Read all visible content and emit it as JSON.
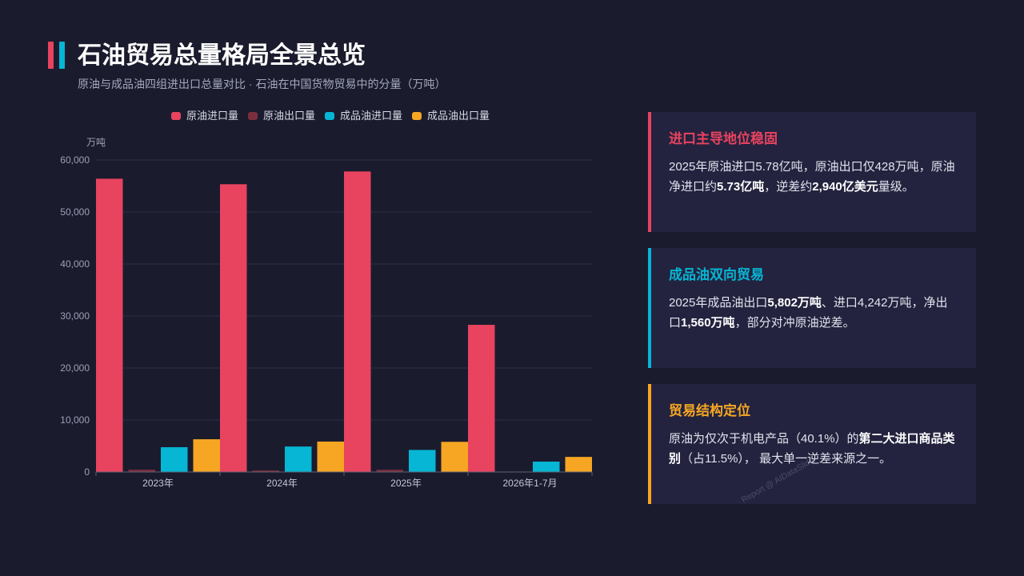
{
  "header": {
    "title": "石油贸易总量格局全景总览",
    "subtitle": "原油与成品油四组进出口总量对比 · 石油在中国货物贸易中的分量（万吨）",
    "accent_colors": [
      "#e8435f",
      "#06b6d4"
    ]
  },
  "chart_data": {
    "type": "bar",
    "categories": [
      "2023年",
      "2024年",
      "2025年",
      "2026年1-7月"
    ],
    "series": [
      {
        "name": "原油进口量",
        "color": "#e8435f",
        "values": [
          56400,
          55340,
          57800,
          28300
        ]
      },
      {
        "name": "原油出口量",
        "color": "#7a2e3e",
        "values": [
          450,
          300,
          428,
          0
        ]
      },
      {
        "name": "成品油进口量",
        "color": "#06b6d4",
        "values": [
          4770,
          4900,
          4242,
          2000
        ]
      },
      {
        "name": "成品油出口量",
        "color": "#f6a623",
        "values": [
          6300,
          5850,
          5802,
          2900
        ]
      }
    ],
    "ylabel": "万吨",
    "ylim": [
      0,
      60000
    ],
    "yticks": [
      0,
      10000,
      20000,
      30000,
      40000,
      50000,
      60000
    ],
    "ytick_labels": [
      "0",
      "10,000",
      "20,000",
      "30,000",
      "40,000",
      "50,000",
      "60,000"
    ],
    "grid": true,
    "legend": "top"
  },
  "cards": [
    {
      "heading": "进口主导地位稳固",
      "color": "#e8435f",
      "body": [
        "2025年原油进口5.78亿吨，原油出口仅428万吨，原油净进口约",
        "5.73亿吨",
        "，逆差约",
        "2,940亿美元",
        "量级。"
      ]
    },
    {
      "heading": "成品油双向贸易",
      "color": "#06b6d4",
      "body": [
        "2025年成品油出口",
        "5,802万吨",
        "、进口4,242万吨，净出口",
        "1,560万吨",
        "，部分对冲原油逆差。"
      ]
    },
    {
      "heading": "贸易结构定位",
      "color": "#f6a623",
      "body": [
        "原油为仅次于机电产品（40.1%）的",
        "第二大进口商品类别",
        "（占11.5%）， 最大单一逆差来源之一。"
      ]
    }
  ],
  "watermark": "Report @ AIDataSlide",
  "theme": {
    "background": "#1b1b2e",
    "card_background": "#23233f",
    "text": "#e1e4ee"
  }
}
